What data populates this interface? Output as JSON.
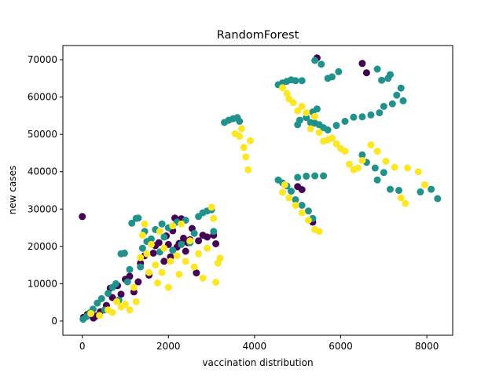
{
  "chart_data": {
    "type": "scatter",
    "title": "RandomForest",
    "xlabel": "vaccination  distribution",
    "ylabel": "new  cases",
    "xlim": [
      -450,
      8600
    ],
    "ylim": [
      -3800,
      73800
    ],
    "xticks": [
      0,
      2000,
      4000,
      6000,
      8000
    ],
    "xtick_labels": [
      "0",
      "2000",
      "4000",
      "6000",
      "8000"
    ],
    "yticks": [
      0,
      10000,
      20000,
      30000,
      40000,
      50000,
      60000,
      70000
    ],
    "ytick_labels": [
      "0",
      "10000",
      "20000",
      "30000",
      "40000",
      "50000",
      "60000",
      "70000"
    ],
    "grid": false,
    "legend": "none",
    "colors": {
      "class_0": "#440154",
      "class_1": "#21918c",
      "class_2": "#fde725"
    },
    "series": [
      {
        "color_key": "class_0",
        "points": [
          [
            0,
            28000
          ],
          [
            30,
            1000
          ],
          [
            120,
            1800
          ],
          [
            260,
            800
          ],
          [
            330,
            1400
          ],
          [
            420,
            2500
          ],
          [
            560,
            4200
          ],
          [
            650,
            8800
          ],
          [
            700,
            6300
          ],
          [
            820,
            9500
          ],
          [
            900,
            7200
          ],
          [
            1000,
            11200
          ],
          [
            1100,
            12000
          ],
          [
            1200,
            7800
          ],
          [
            1300,
            10500
          ],
          [
            1350,
            15500
          ],
          [
            1450,
            17500
          ],
          [
            1550,
            12300
          ],
          [
            1650,
            18200
          ],
          [
            1700,
            20200
          ],
          [
            1780,
            21000
          ],
          [
            1900,
            16000
          ],
          [
            1950,
            22800
          ],
          [
            2000,
            20500
          ],
          [
            2050,
            17200
          ],
          [
            2100,
            24200
          ],
          [
            2150,
            27600
          ],
          [
            2200,
            19800
          ],
          [
            2250,
            20800
          ],
          [
            2300,
            27400
          ],
          [
            2350,
            22200
          ],
          [
            2400,
            18700
          ],
          [
            2450,
            21000
          ],
          [
            2500,
            21800
          ],
          [
            2550,
            24800
          ],
          [
            2650,
            12900
          ],
          [
            2700,
            21500
          ],
          [
            2800,
            23000
          ],
          [
            2900,
            22500
          ],
          [
            3050,
            23000
          ],
          [
            3100,
            20700
          ],
          [
            5000,
            36000
          ],
          [
            5100,
            35200
          ],
          [
            5350,
            26500
          ],
          [
            5450,
            70500
          ],
          [
            6500,
            69000
          ],
          [
            6600,
            66500
          ]
        ]
      },
      {
        "color_key": "class_1",
        "points": [
          [
            20,
            500
          ],
          [
            100,
            1200
          ],
          [
            180,
            2200
          ],
          [
            250,
            3200
          ],
          [
            350,
            4800
          ],
          [
            450,
            6000
          ],
          [
            520,
            3000
          ],
          [
            600,
            7400
          ],
          [
            700,
            9000
          ],
          [
            780,
            10000
          ],
          [
            850,
            5600
          ],
          [
            900,
            18000
          ],
          [
            980,
            18200
          ],
          [
            1050,
            10500
          ],
          [
            1100,
            13800
          ],
          [
            1150,
            26200
          ],
          [
            1250,
            27500
          ],
          [
            1300,
            27600
          ],
          [
            1350,
            14500
          ],
          [
            1400,
            19500
          ],
          [
            1450,
            24000
          ],
          [
            1500,
            21300
          ],
          [
            1600,
            22000
          ],
          [
            1700,
            24500
          ],
          [
            1800,
            18500
          ],
          [
            1850,
            26000
          ],
          [
            1900,
            22500
          ],
          [
            2000,
            25000
          ],
          [
            2100,
            19000
          ],
          [
            2200,
            26500
          ],
          [
            2300,
            20500
          ],
          [
            2400,
            27000
          ],
          [
            2500,
            21000
          ],
          [
            2600,
            23500
          ],
          [
            2700,
            28000
          ],
          [
            2800,
            29000
          ],
          [
            2900,
            29500
          ],
          [
            3000,
            29800
          ],
          [
            3050,
            24000
          ],
          [
            3300,
            53200
          ],
          [
            3400,
            53800
          ],
          [
            3500,
            54200
          ],
          [
            3600,
            54500
          ],
          [
            3650,
            53500
          ],
          [
            4550,
            63300
          ],
          [
            4650,
            63800
          ],
          [
            4750,
            64200
          ],
          [
            4850,
            64600
          ],
          [
            4950,
            64400
          ],
          [
            5100,
            64400
          ],
          [
            5000,
            52600
          ],
          [
            5050,
            53800
          ],
          [
            5200,
            54500
          ],
          [
            5300,
            53200
          ],
          [
            5400,
            53000
          ],
          [
            5500,
            52600
          ],
          [
            5600,
            51800
          ],
          [
            5700,
            51200
          ],
          [
            5900,
            52400
          ],
          [
            5400,
            69800
          ],
          [
            5550,
            68800
          ],
          [
            5700,
            65000
          ],
          [
            5800,
            65400
          ],
          [
            5950,
            66800
          ],
          [
            5450,
            56800
          ],
          [
            5350,
            56000
          ],
          [
            4550,
            37800
          ],
          [
            4650,
            37000
          ],
          [
            4750,
            36200
          ],
          [
            4850,
            34800
          ],
          [
            4950,
            32500
          ],
          [
            5100,
            31000
          ],
          [
            5250,
            29500
          ],
          [
            5350,
            27500
          ],
          [
            5000,
            38500
          ],
          [
            5200,
            38800
          ],
          [
            5400,
            38900
          ],
          [
            5600,
            38900
          ],
          [
            6100,
            53500
          ],
          [
            6300,
            54600
          ],
          [
            6500,
            54700
          ],
          [
            6700,
            55200
          ],
          [
            6900,
            55800
          ],
          [
            7000,
            57500
          ],
          [
            7200,
            58200
          ],
          [
            7300,
            60500
          ],
          [
            7400,
            62400
          ],
          [
            7450,
            59000
          ],
          [
            7100,
            65000
          ],
          [
            6850,
            67500
          ],
          [
            6950,
            64500
          ],
          [
            7150,
            66000
          ],
          [
            6500,
            44500
          ],
          [
            6600,
            42500
          ],
          [
            6800,
            41000
          ],
          [
            6850,
            37800
          ],
          [
            7000,
            39800
          ],
          [
            7150,
            35300
          ],
          [
            7350,
            35000
          ],
          [
            7850,
            34600
          ],
          [
            8100,
            35300
          ],
          [
            8250,
            32800
          ]
        ]
      },
      {
        "color_key": "class_2",
        "points": [
          [
            200,
            2000
          ],
          [
            400,
            1500
          ],
          [
            600,
            3000
          ],
          [
            700,
            2300
          ],
          [
            800,
            5200
          ],
          [
            900,
            3800
          ],
          [
            1000,
            4500
          ],
          [
            1100,
            3000
          ],
          [
            1200,
            9000
          ],
          [
            1250,
            5200
          ],
          [
            1350,
            17000
          ],
          [
            1400,
            23000
          ],
          [
            1450,
            26000
          ],
          [
            1500,
            18000
          ],
          [
            1550,
            13000
          ],
          [
            1600,
            20500
          ],
          [
            1700,
            15000
          ],
          [
            1750,
            10200
          ],
          [
            1800,
            24000
          ],
          [
            1850,
            13000
          ],
          [
            1900,
            19500
          ],
          [
            2000,
            9000
          ],
          [
            2050,
            16000
          ],
          [
            2100,
            25500
          ],
          [
            2200,
            17500
          ],
          [
            2250,
            12500
          ],
          [
            2300,
            26000
          ],
          [
            2400,
            16000
          ],
          [
            2500,
            21500
          ],
          [
            2600,
            14500
          ],
          [
            2700,
            18000
          ],
          [
            2800,
            11500
          ],
          [
            2900,
            19500
          ],
          [
            3000,
            30500
          ],
          [
            3050,
            27500
          ],
          [
            3100,
            10400
          ],
          [
            3150,
            15500
          ],
          [
            3200,
            16800
          ],
          [
            3550,
            50200
          ],
          [
            3650,
            49500
          ],
          [
            3700,
            51500
          ],
          [
            3750,
            46500
          ],
          [
            3800,
            44000
          ],
          [
            3850,
            40500
          ],
          [
            3900,
            48300
          ],
          [
            4650,
            62500
          ],
          [
            4750,
            61000
          ],
          [
            4800,
            59500
          ],
          [
            4900,
            58500
          ],
          [
            5000,
            56300
          ],
          [
            5100,
            57500
          ],
          [
            5200,
            55800
          ],
          [
            5300,
            51500
          ],
          [
            5400,
            54800
          ],
          [
            5500,
            50500
          ],
          [
            5600,
            48200
          ],
          [
            5700,
            48500
          ],
          [
            5800,
            49000
          ],
          [
            5900,
            47500
          ],
          [
            6000,
            46200
          ],
          [
            6100,
            45500
          ],
          [
            6200,
            42000
          ],
          [
            6300,
            40500
          ],
          [
            6400,
            41000
          ],
          [
            6500,
            43000
          ],
          [
            6700,
            47200
          ],
          [
            6850,
            45500
          ],
          [
            7050,
            42800
          ],
          [
            7250,
            41200
          ],
          [
            7550,
            41000
          ],
          [
            7800,
            40000
          ],
          [
            7950,
            36500
          ],
          [
            7400,
            33000
          ],
          [
            7500,
            31500
          ],
          [
            4650,
            34500
          ],
          [
            4800,
            33000
          ],
          [
            4950,
            31000
          ],
          [
            5100,
            29000
          ],
          [
            5250,
            27000
          ],
          [
            5400,
            24500
          ],
          [
            5500,
            24000
          ],
          [
            4700,
            36500
          ]
        ]
      }
    ]
  }
}
